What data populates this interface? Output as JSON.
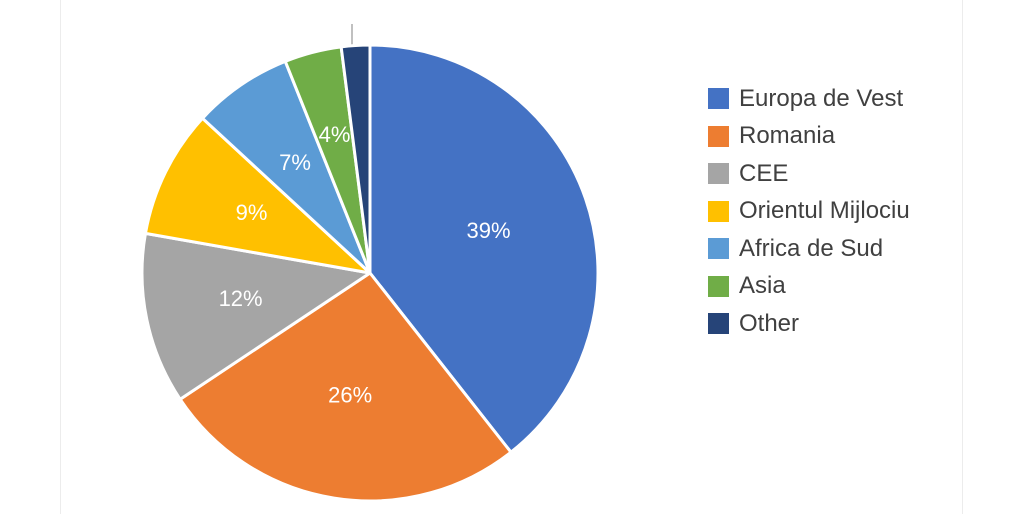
{
  "chart_data": {
    "type": "pie",
    "categories": [
      "Europa de Vest",
      "Romania",
      "CEE",
      "Orientul Mijlociu",
      "Africa de Sud",
      "Asia",
      "Other"
    ],
    "values": [
      39,
      26,
      12,
      9,
      7,
      4,
      2
    ],
    "labels": [
      "39%",
      "26%",
      "12%",
      "9%",
      "7%",
      "4%",
      ""
    ],
    "colors": [
      "#4472C4",
      "#ED7D31",
      "#A5A5A5",
      "#FFC000",
      "#5B9BD5",
      "#70AD47",
      "#264478"
    ],
    "legend_position": "right"
  }
}
